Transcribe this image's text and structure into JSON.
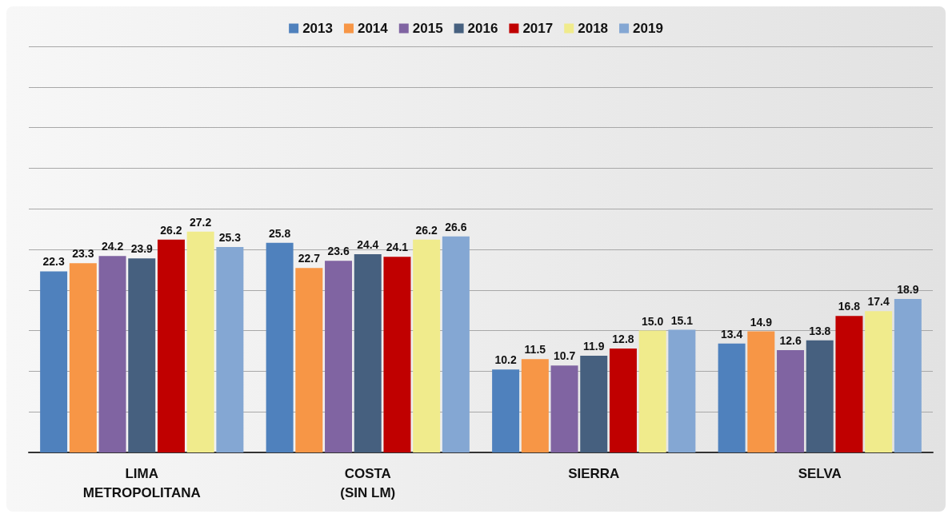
{
  "chart_data": {
    "type": "bar",
    "categories": [
      "LIMA\nMETROPOLITANA",
      "COSTA\n(SIN LM)",
      "SIERRA",
      "SELVA"
    ],
    "series": [
      {
        "name": "2013",
        "color": "#4f81bd",
        "values": [
          22.3,
          25.8,
          10.2,
          13.4
        ],
        "value_labels": [
          "22.3",
          "25.8",
          "10.2",
          "13.4"
        ]
      },
      {
        "name": "2014",
        "color": "#f79646",
        "values": [
          23.3,
          22.7,
          11.5,
          14.9
        ],
        "value_labels": [
          "23.3",
          "22.7",
          "11.5",
          "14.9"
        ]
      },
      {
        "name": "2015",
        "color": "#8064a2",
        "values": [
          24.2,
          23.6,
          10.7,
          12.6
        ],
        "value_labels": [
          "24.2",
          "23.6",
          "10.7",
          "12.6"
        ]
      },
      {
        "name": "2016",
        "color": "#46607f",
        "values": [
          23.9,
          24.4,
          11.9,
          13.8
        ],
        "value_labels": [
          "23.9",
          "24.4",
          "11.9",
          "13.8"
        ]
      },
      {
        "name": "2017",
        "color": "#c00000",
        "values": [
          26.2,
          24.1,
          12.8,
          16.8
        ],
        "value_labels": [
          "26.2",
          "24.1",
          "12.8",
          "16.8"
        ]
      },
      {
        "name": "2018",
        "color": "#f0eb8c",
        "values": [
          27.2,
          26.2,
          15.0,
          17.4
        ],
        "value_labels": [
          "27.2",
          "26.2",
          "15.0",
          "17.4"
        ]
      },
      {
        "name": "2019",
        "color": "#84a7d3",
        "values": [
          25.3,
          26.6,
          15.1,
          18.9
        ],
        "value_labels": [
          "25.3",
          "26.6",
          "15.1",
          "18.9"
        ]
      }
    ],
    "ylim": [
      0,
      50
    ],
    "yticks": [
      {
        "value": 0,
        "label": null
      },
      {
        "value": 5,
        "label": null
      },
      {
        "value": 10,
        "label": null
      },
      {
        "value": 15,
        "label": null
      },
      {
        "value": 20,
        "label": null
      },
      {
        "value": 25,
        "label": null
      },
      {
        "value": 30,
        "label": null
      },
      {
        "value": 35,
        "label": null
      },
      {
        "value": 40,
        "label": null
      },
      {
        "value": 45,
        "label": null
      },
      {
        "value": 50,
        "label": null
      }
    ],
    "tick_labels": "x",
    "grid": "y",
    "legend": "top"
  }
}
